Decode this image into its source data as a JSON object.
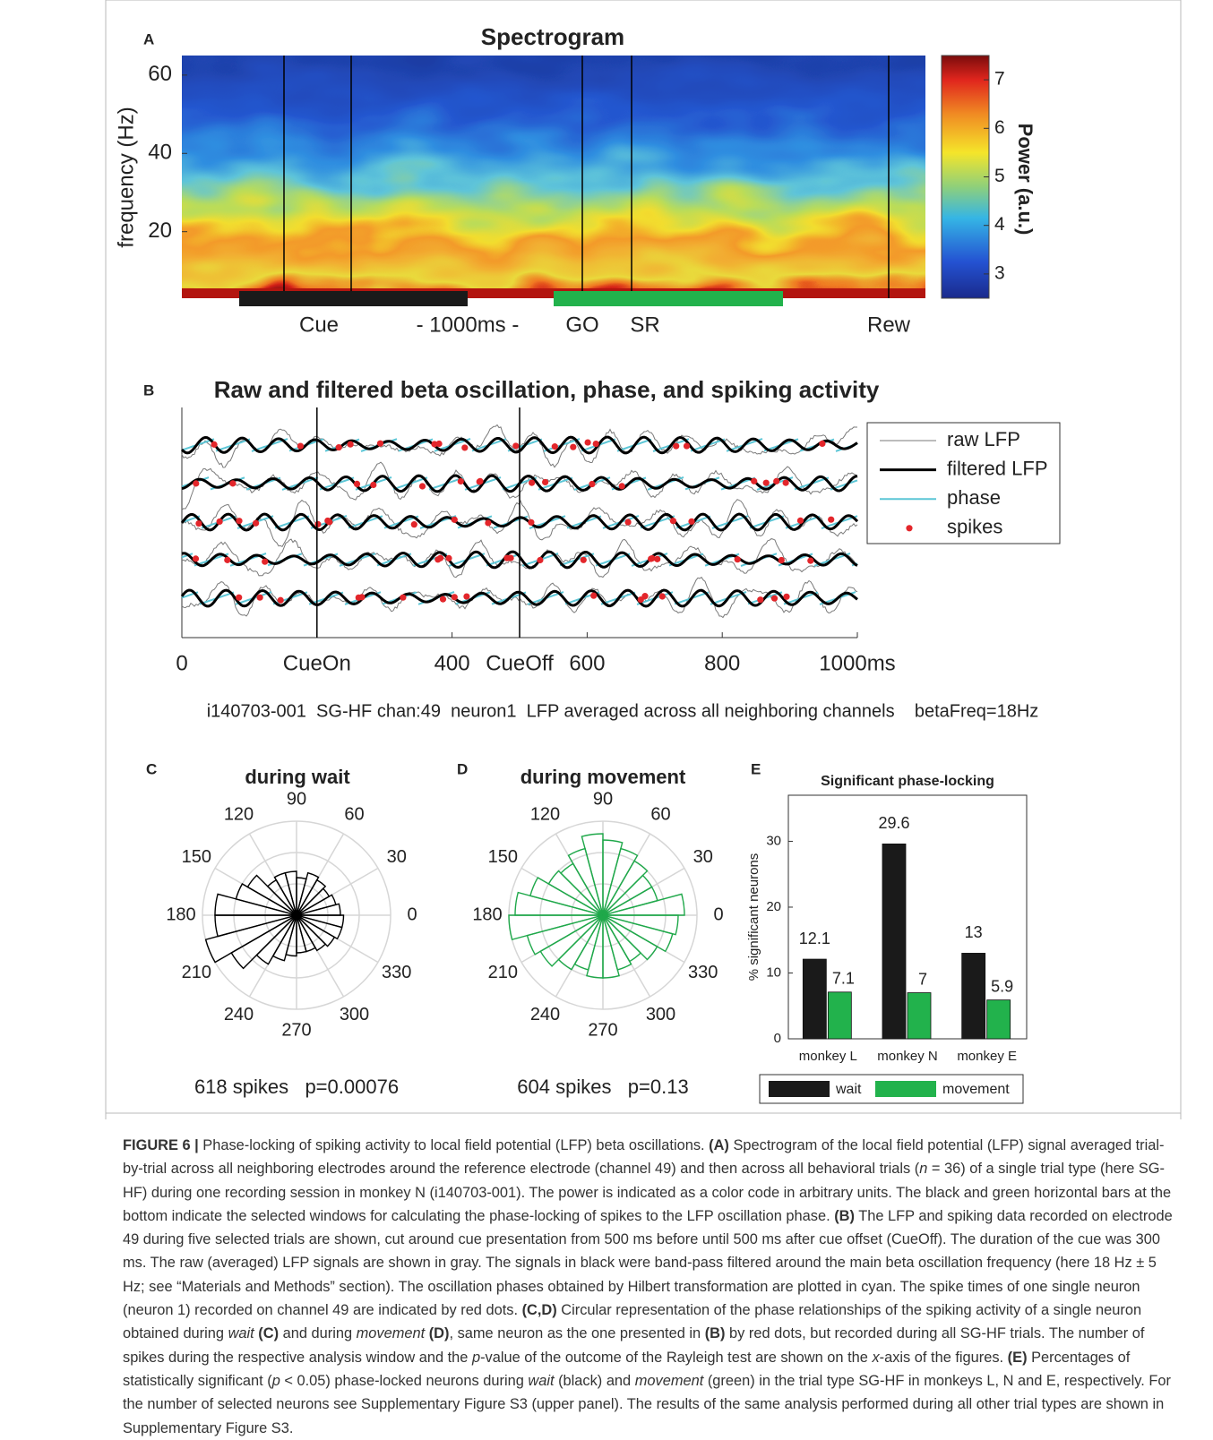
{
  "chart_data": [
    {
      "type": "spectrogram",
      "letter": "A",
      "title": "Spectrogram",
      "ylabel": "frequency (Hz)",
      "ylim": [
        3,
        65
      ],
      "yticks": [
        20,
        40,
        60
      ],
      "colorbar_label": "Power (a.u.)",
      "clim": [
        2.5,
        7.5
      ],
      "cticks": [
        3,
        4,
        5,
        6,
        7
      ],
      "events": [
        "Cue",
        "- 1000ms -",
        "GO",
        "SR",
        "Rew"
      ]
    },
    {
      "type": "traces",
      "letter": "B",
      "title": "Raw and filtered beta oscillation, phase, and spiking activity",
      "xlim": [
        0,
        1000
      ],
      "xticks": [
        0,
        {
          "value": 200,
          "label": "CueOn"
        },
        400,
        {
          "value": 500,
          "label": "CueOff"
        },
        600,
        800,
        {
          "value": 1000,
          "label": "1000ms"
        }
      ],
      "series": [
        {
          "name": "raw LFP",
          "color": "#7a7a7a"
        },
        {
          "name": "filtered LFP",
          "color": "#000000"
        },
        {
          "name": "phase",
          "color": "#5cc6d6"
        },
        {
          "name": "spikes",
          "color": "#e3262b"
        }
      ],
      "footnote": "i140703-001  SG-HF chan:49  neuron1  LFP averaged across all neighboring channels    betaFreq=18Hz"
    },
    {
      "type": "polar_histogram",
      "letter": "C",
      "title": "during wait",
      "color": "#000000",
      "bins": [
        0,
        15,
        30,
        45,
        60,
        75,
        90,
        105,
        120,
        135,
        150,
        165,
        180,
        195,
        210,
        225,
        240,
        255,
        270,
        285,
        300,
        315,
        330,
        345,
        360
      ],
      "values": [
        1.4,
        1.3,
        1.2,
        1.3,
        1.4,
        1.2,
        1.4,
        1.4,
        1.3,
        1.8,
        2.0,
        2.6,
        2.6,
        3.0,
        2.4,
        1.8,
        1.5,
        1.3,
        1.2,
        1.2,
        1.3,
        1.4,
        1.5,
        1.5
      ],
      "rlim": [
        0,
        3
      ],
      "rticks": [
        1,
        2,
        3
      ],
      "theta_ticks": [
        0,
        30,
        60,
        90,
        120,
        150,
        180,
        210,
        240,
        270,
        300,
        330
      ],
      "xlabel": "618 spikes   p=0.00076"
    },
    {
      "type": "polar_histogram",
      "letter": "D",
      "title": "during movement",
      "color": "#1fa84a",
      "bins": [
        0,
        15,
        30,
        45,
        60,
        75,
        90,
        105,
        120,
        135,
        150,
        165,
        180,
        195,
        210,
        225,
        240,
        255,
        270,
        285,
        300,
        315,
        330,
        345,
        360
      ],
      "values": [
        2.6,
        1.8,
        1.8,
        2.0,
        2.2,
        2.4,
        2.6,
        2.2,
        1.9,
        2.0,
        2.4,
        2.8,
        3.0,
        2.5,
        2.3,
        2.0,
        1.8,
        2.0,
        2.0,
        1.8,
        1.7,
        2.0,
        2.3,
        2.4
      ],
      "rlim": [
        0,
        3
      ],
      "rticks": [
        1,
        2,
        3
      ],
      "theta_ticks": [
        0,
        30,
        60,
        90,
        120,
        150,
        180,
        210,
        240,
        270,
        300,
        330
      ],
      "xlabel": "604 spikes   p=0.13"
    },
    {
      "type": "bar",
      "letter": "E",
      "title": "Significant phase-locking",
      "ylabel": "% significant neurons",
      "categories": [
        "monkey L",
        "monkey N",
        "monkey E"
      ],
      "series": [
        {
          "name": "wait",
          "color": "#1a1a1a",
          "values": [
            12.1,
            29.6,
            13
          ]
        },
        {
          "name": "movement",
          "color": "#22b24c",
          "values": [
            7.1,
            7,
            5.9
          ]
        }
      ],
      "ylim": [
        0,
        37
      ],
      "yticks": [
        0,
        10,
        20,
        30
      ]
    }
  ],
  "caption": [
    {
      "text": "FIGURE 6 |",
      "style": "bold"
    },
    {
      "text": " Phase-locking of spiking activity to local field potential (LFP) beta oscillations. ",
      "style": "normal"
    },
    {
      "text": "(A)",
      "style": "bold"
    },
    {
      "text": " Spectrogram of the local field potential (LFP) signal averaged trial-by-trial across all neighboring electrodes around the reference electrode (channel 49) and then across all behavioral trials (",
      "style": "normal"
    },
    {
      "text": "n",
      "style": "italic"
    },
    {
      "text": " = 36) of a single trial type (here SG-HF) during one recording session in monkey N (i140703-001). The power is indicated as a color code in arbitrary units. The black and green horizontal bars at the bottom indicate the selected windows for calculating the phase-locking of spikes to the LFP oscillation phase. ",
      "style": "normal"
    },
    {
      "text": "(B)",
      "style": "bold"
    },
    {
      "text": " The LFP and spiking data recorded on electrode 49 during five selected trials are shown, cut around cue presentation from 500 ms before until 500 ms after cue offset (CueOff). The duration of the cue was 300 ms. The raw (averaged) LFP signals are shown in gray. The signals in black were band-pass filtered around the main beta oscillation frequency (here 18 Hz ± 5 Hz; see “Materials and Methods” section). The oscillation phases obtained by Hilbert transformation are plotted in cyan. The spike times of one single neuron (neuron 1) recorded on channel 49 are indicated by red dots. ",
      "style": "normal"
    },
    {
      "text": "(C,D)",
      "style": "bold"
    },
    {
      "text": " Circular representation of the phase relationships of the spiking activity of a single neuron obtained during ",
      "style": "normal"
    },
    {
      "text": "wait",
      "style": "italic"
    },
    {
      "text": " ",
      "style": "normal"
    },
    {
      "text": "(C)",
      "style": "bold"
    },
    {
      "text": " and during ",
      "style": "normal"
    },
    {
      "text": "movement",
      "style": "italic"
    },
    {
      "text": " ",
      "style": "normal"
    },
    {
      "text": "(D)",
      "style": "bold"
    },
    {
      "text": ", same neuron as the one presented in ",
      "style": "normal"
    },
    {
      "text": "(B)",
      "style": "bold"
    },
    {
      "text": " by red dots, but recorded during all SG-HF trials. The number of spikes during the respective analysis window and the ",
      "style": "normal"
    },
    {
      "text": "p",
      "style": "italic"
    },
    {
      "text": "-value of the outcome of the Rayleigh test are shown on the ",
      "style": "normal"
    },
    {
      "text": "x",
      "style": "italic"
    },
    {
      "text": "-axis of the figures. ",
      "style": "normal"
    },
    {
      "text": "(E)",
      "style": "bold"
    },
    {
      "text": " Percentages of statistically significant (",
      "style": "normal"
    },
    {
      "text": "p",
      "style": "italic"
    },
    {
      "text": " < 0.05) phase-locked neurons during ",
      "style": "normal"
    },
    {
      "text": "wait",
      "style": "italic"
    },
    {
      "text": " (black) and ",
      "style": "normal"
    },
    {
      "text": "movement",
      "style": "italic"
    },
    {
      "text": " (green) in the trial type SG-HF in monkeys L, N and E, respectively. For the number of selected neurons see Supplementary Figure S3 (upper panel). The results of the same analysis performed during all other trial types are shown in Supplementary Figure S3.",
      "style": "normal"
    }
  ]
}
